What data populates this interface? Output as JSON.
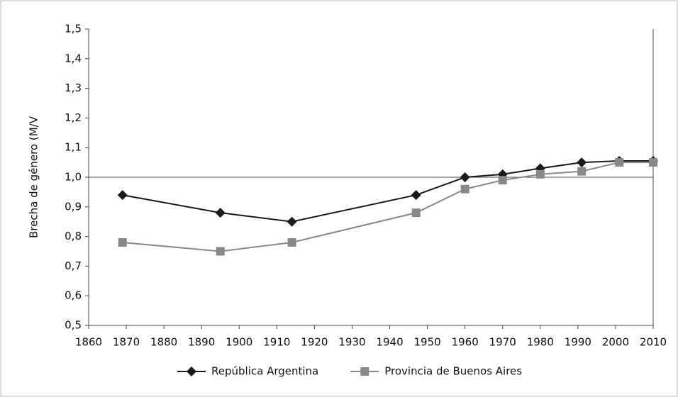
{
  "chart_data": {
    "type": "line",
    "y_label": "Brecha de género (M/V",
    "x": [
      1869,
      1895,
      1914,
      1947,
      1960,
      1970,
      1980,
      1991,
      2001,
      2010
    ],
    "series": [
      {
        "name": "República Argentina",
        "color": "#1a1a1a",
        "marker": "diamond",
        "values": [
          0.94,
          0.88,
          0.85,
          0.94,
          1.0,
          1.01,
          1.03,
          1.05,
          1.055,
          1.055
        ]
      },
      {
        "name": "Provincia de Buenos Aires",
        "color": "#888888",
        "marker": "square",
        "values": [
          0.78,
          0.75,
          0.78,
          0.88,
          0.96,
          0.99,
          1.01,
          1.02,
          1.05,
          1.05
        ]
      }
    ],
    "xlim": [
      1860,
      2010
    ],
    "xticks": [
      1860,
      1870,
      1880,
      1890,
      1900,
      1910,
      1920,
      1930,
      1940,
      1950,
      1960,
      1970,
      1980,
      1990,
      2000,
      2010
    ],
    "ylim": [
      0.5,
      1.5
    ],
    "yticks": [
      {
        "value": 0.5,
        "label": "0,5"
      },
      {
        "value": 0.6,
        "label": "0,6"
      },
      {
        "value": 0.7,
        "label": "0,7"
      },
      {
        "value": 0.8,
        "label": "0,8"
      },
      {
        "value": 0.9,
        "label": "0,9"
      },
      {
        "value": 1.0,
        "label": "1,0"
      },
      {
        "value": 1.1,
        "label": "1,1"
      },
      {
        "value": 1.2,
        "label": "1,2"
      },
      {
        "value": 1.3,
        "label": "1,3"
      },
      {
        "value": 1.4,
        "label": "1,4"
      },
      {
        "value": 1.5,
        "label": "1,5"
      }
    ],
    "reference_line": 1.0,
    "legend": "bottom"
  }
}
